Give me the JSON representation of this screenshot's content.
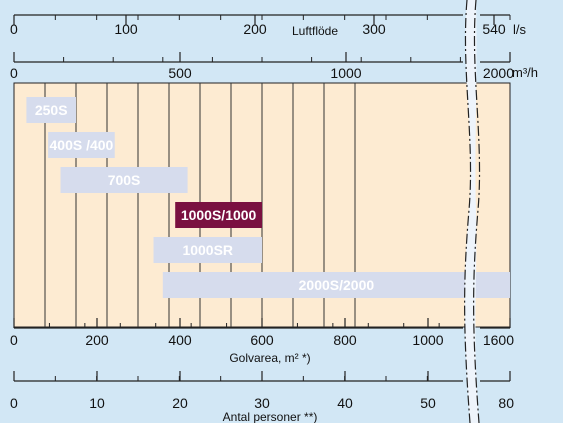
{
  "chart_data": {
    "type": "bar",
    "subtype": "horizontal range bars",
    "background": "#d2e7f5",
    "plot_fill": "#fdebd2",
    "bar_color": "#d6dced",
    "highlight_color": "#7a1040",
    "bars": [
      {
        "label": "250S",
        "from": 40,
        "to": 200,
        "highlight": false
      },
      {
        "label": "400S /400",
        "from": 110,
        "to": 325,
        "highlight": false
      },
      {
        "label": "700S",
        "from": 150,
        "to": 560,
        "highlight": false
      },
      {
        "label": "1000S/1000",
        "from": 520,
        "to": 800,
        "highlight": true
      },
      {
        "label": "1000SR",
        "from": 450,
        "to": 800,
        "highlight": false
      },
      {
        "label": "2000S/2000",
        "from": 480,
        "to": 1600,
        "highlight": false
      }
    ],
    "axes": [
      {
        "id": "airflow_ls",
        "label": "Luftflöde",
        "ticks": [
          "0",
          "100",
          "200",
          "300",
          "540"
        ],
        "unit": "l/s"
      },
      {
        "id": "airflow_m3h",
        "label": "",
        "ticks": [
          "0",
          "500",
          "1000",
          "2000"
        ],
        "unit": "m³/h"
      },
      {
        "id": "floor_area",
        "label": "Golvarea, m² *)",
        "ticks": [
          "0",
          "200",
          "400",
          "600",
          "800",
          "1000",
          "1600"
        ],
        "unit": ""
      },
      {
        "id": "persons",
        "label": "Antal personer **)",
        "ticks": [
          "0",
          "10",
          "20",
          "30",
          "40",
          "50",
          "80"
        ],
        "unit": ""
      }
    ],
    "xlim": [
      0,
      1600
    ],
    "grid": true,
    "axis_break": true
  }
}
